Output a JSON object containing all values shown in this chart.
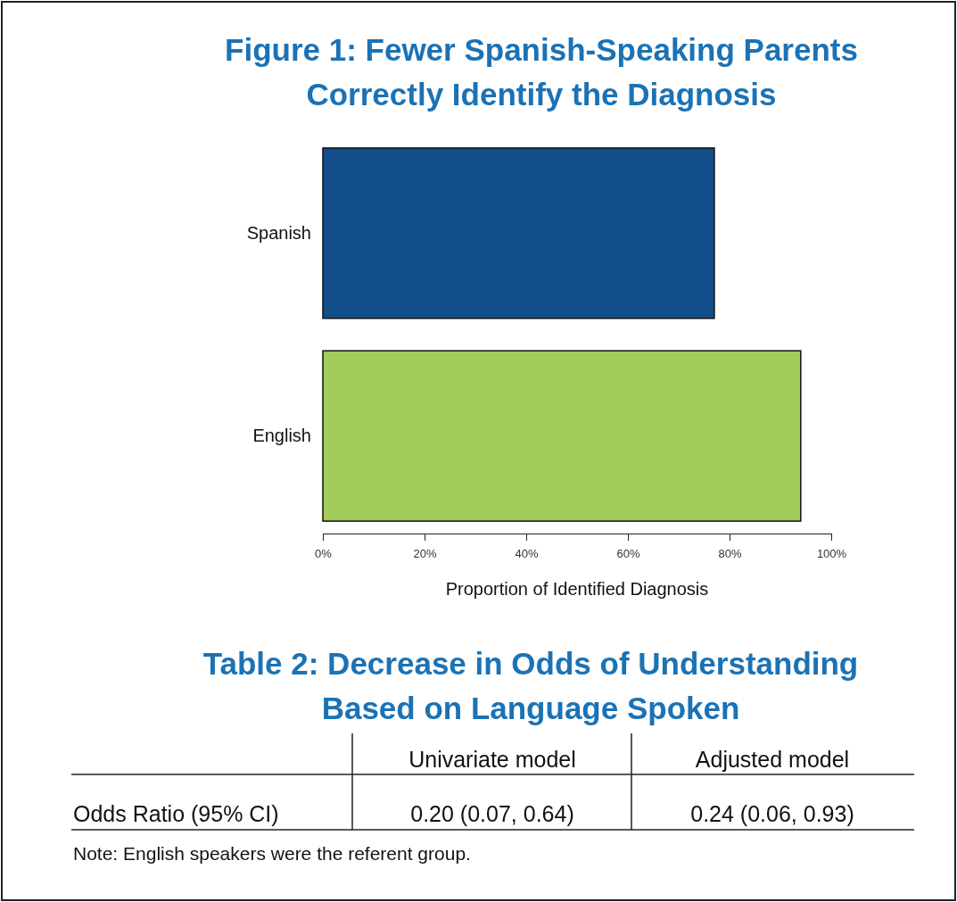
{
  "chart_data": [
    {
      "type": "bar",
      "orientation": "horizontal",
      "title": "Figure 1: Fewer Spanish-Speaking Parents Correctly Identify the Diagnosis",
      "xlabel": "Proportion of Identified Diagnosis",
      "categories": [
        "Spanish",
        "English"
      ],
      "values": [
        77,
        94
      ],
      "colors": [
        "#114e8a",
        "#a2cb5c"
      ],
      "xlim": [
        0,
        100
      ],
      "xticks": [
        {
          "value": 0,
          "label": "0%"
        },
        {
          "value": 20,
          "label": "20%"
        },
        {
          "value": 40,
          "label": "40%"
        },
        {
          "value": 60,
          "label": "60%"
        },
        {
          "value": 80,
          "label": "80%"
        },
        {
          "value": 100,
          "label": "100%"
        }
      ]
    },
    {
      "type": "other",
      "title": "Table 2: Decrease in Odds of Understanding Based on Language Spoken",
      "annotations": [
        "Univariate model",
        "Adjusted model",
        "Odds Ratio (95% CI)",
        "0.20 (0.07, 0.64)",
        "0.24 (0.06, 0.93)",
        "Note: English speakers were the referent group."
      ]
    }
  ]
}
